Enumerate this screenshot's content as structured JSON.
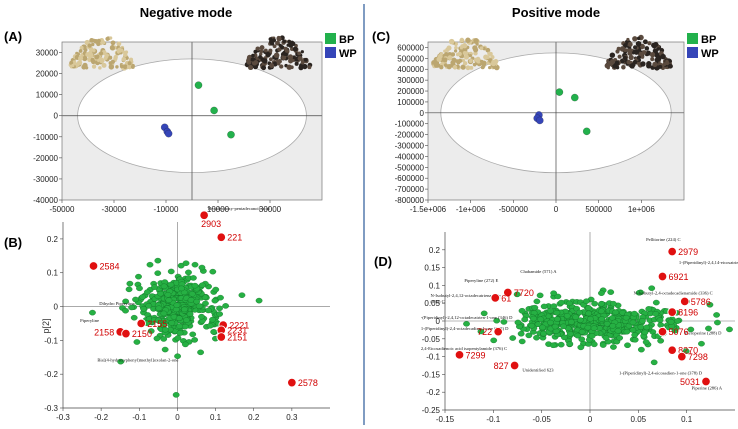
{
  "headers": {
    "negative": "Negative mode",
    "positive": "Positive mode"
  },
  "colors": {
    "bp": "#22b14c",
    "wp": "#3545b8",
    "loading_fill": "#26b043",
    "highlight": "#e01010",
    "label": "#d10000",
    "divider": "#2b5a9a"
  },
  "chart_data": [
    {
      "id": "A",
      "panel_label": "(A)",
      "type": "scatter",
      "title": "",
      "xlim": [
        -50000,
        50000
      ],
      "ylim": [
        -40000,
        35000
      ],
      "xticks": [
        -50000,
        -30000,
        -10000,
        10000,
        30000
      ],
      "yticks": [
        -40000,
        -30000,
        -20000,
        -10000,
        0,
        10000,
        20000,
        30000
      ],
      "xtick_labels": [
        "-50000",
        "-30000",
        "-10000",
        "10000",
        "30000"
      ],
      "ytick_labels": [
        "-40000",
        "-30000",
        "-20000",
        "-10000",
        "0",
        "10000",
        "20000",
        "30000"
      ],
      "ellipse": {
        "rx": 44000,
        "ry": 27000
      },
      "legend": [
        "BP",
        "WP"
      ],
      "series": [
        {
          "name": "BP",
          "points": [
            [
              2500,
              14500
            ],
            [
              8500,
              2500
            ],
            [
              15000,
              -9000
            ]
          ]
        },
        {
          "name": "WP",
          "points": [
            [
              -10500,
              -5500
            ],
            [
              -9500,
              -7500
            ],
            [
              -9000,
              -8500
            ]
          ]
        }
      ]
    },
    {
      "id": "C",
      "panel_label": "(C)",
      "type": "scatter",
      "title": "",
      "xlim": [
        -1500000,
        1500000
      ],
      "ylim": [
        -800000,
        650000
      ],
      "xticks": [
        -1500000,
        -1000000,
        -500000,
        0,
        500000,
        1000000
      ],
      "yticks": [
        -800000,
        -700000,
        -600000,
        -500000,
        -400000,
        -300000,
        -200000,
        -100000,
        0,
        100000,
        200000,
        300000,
        400000,
        500000,
        600000
      ],
      "xtick_labels": [
        "-1.5e+006",
        "-1e+006",
        "-500000",
        "0",
        "500000",
        "1e+006"
      ],
      "ytick_labels": [
        "-800000",
        "-700000",
        "-600000",
        "-500000",
        "-400000",
        "-300000",
        "-200000",
        "-100000",
        "0",
        "100000",
        "200000",
        "300000",
        "400000",
        "500000",
        "600000"
      ],
      "ellipse": {
        "rx": 1350000,
        "ry": 550000
      },
      "legend": [
        "BP",
        "WP"
      ],
      "series": [
        {
          "name": "BP",
          "points": [
            [
              40000,
              190000
            ],
            [
              220000,
              140000
            ],
            [
              360000,
              -170000
            ]
          ]
        },
        {
          "name": "WP",
          "points": [
            [
              -200000,
              -20000
            ],
            [
              -220000,
              -50000
            ],
            [
              -190000,
              -70000
            ]
          ]
        }
      ]
    },
    {
      "id": "B",
      "panel_label": "(B)",
      "type": "scatter",
      "ylabel": "p[2]",
      "xlim": [
        -0.3,
        0.4
      ],
      "ylim": [
        -0.3,
        0.25
      ],
      "xticks": [
        -0.3,
        -0.2,
        -0.1,
        0,
        0.1,
        0.2,
        0.3
      ],
      "yticks": [
        -0.3,
        -0.2,
        -0.1,
        0,
        0.1,
        0.2
      ],
      "xtick_labels": [
        "-0.3",
        "-0.2",
        "-0.1",
        "0",
        "0.1",
        "0.2",
        "0.3"
      ],
      "ytick_labels": [
        "-0.3",
        "-0.2",
        "-0.1",
        "0",
        "0.1",
        "0.2"
      ],
      "cluster": {
        "cx": 0.0,
        "cy": 0.0,
        "sx": 0.055,
        "sy": 0.038,
        "n": 420,
        "seed": 7
      },
      "highlighted": [
        {
          "id": "2584",
          "x": -0.22,
          "y": 0.12,
          "label": "2584",
          "side": "right"
        },
        {
          "id": "2903",
          "x": 0.07,
          "y": 0.27,
          "label": "2903",
          "side": "below"
        },
        {
          "id": "221",
          "x": 0.115,
          "y": 0.205,
          "label": "221",
          "side": "right"
        },
        {
          "id": "2158",
          "x": -0.15,
          "y": -0.075,
          "label": "2158",
          "side": "left"
        },
        {
          "id": "2155",
          "x": -0.095,
          "y": -0.05,
          "label": "2155",
          "side": "right"
        },
        {
          "id": "2150",
          "x": -0.135,
          "y": -0.08,
          "label": "2150",
          "side": "right"
        },
        {
          "id": "2221",
          "x": 0.12,
          "y": -0.055,
          "label": "2221",
          "side": "right"
        },
        {
          "id": "2231",
          "x": 0.115,
          "y": -0.07,
          "label": "2231",
          "side": "right"
        },
        {
          "id": "2151",
          "x": 0.115,
          "y": -0.09,
          "label": "2151",
          "side": "right"
        },
        {
          "id": "2578",
          "x": 0.3,
          "y": -0.225,
          "label": "2578",
          "side": "right"
        }
      ],
      "annotations": [
        {
          "text": "Hexahydroxy-pentadecanoic acid",
          "x": 0.08,
          "y": 0.285
        },
        {
          "text": "Dihydro Piperyline",
          "x": -0.205,
          "y": 0.005
        },
        {
          "text": "Piperyline",
          "x": -0.255,
          "y": -0.045
        },
        {
          "text": "Bis[(4-hydroxyphenyl)methyl]oxolan-2-one",
          "x": -0.21,
          "y": -0.162
        }
      ]
    },
    {
      "id": "D",
      "panel_label": "(D)",
      "type": "scatter",
      "xlim": [
        -0.15,
        0.15
      ],
      "ylim": [
        -0.25,
        0.25
      ],
      "xticks": [
        -0.15,
        -0.1,
        -0.05,
        0,
        0.05,
        0.1
      ],
      "yticks": [
        -0.25,
        -0.2,
        -0.15,
        -0.1,
        -0.05,
        0,
        0.05,
        0.1,
        0.15,
        0.2
      ],
      "xtick_labels": [
        "-0.15",
        "-0.1",
        "-0.05",
        "0",
        "0.05",
        "0.1"
      ],
      "ytick_labels": [
        "-0.25",
        "-0.2",
        "-0.15",
        "-0.1",
        "-0.05",
        "0",
        "0.05",
        "0.1",
        "0.15",
        "0.2"
      ],
      "cluster": {
        "cx": 0.005,
        "cy": -0.005,
        "sx": 0.045,
        "sy": 0.026,
        "n": 520,
        "seed": 13
      },
      "highlighted": [
        {
          "id": "2979",
          "x": 0.085,
          "y": 0.195,
          "label": "2979",
          "side": "right"
        },
        {
          "id": "6921",
          "x": 0.075,
          "y": 0.125,
          "label": "6921",
          "side": "right"
        },
        {
          "id": "7720",
          "x": -0.085,
          "y": 0.08,
          "label": "7720",
          "side": "right"
        },
        {
          "id": "6133",
          "x": -0.098,
          "y": 0.065,
          "label": "61",
          "side": "right"
        },
        {
          "id": "5786",
          "x": 0.098,
          "y": 0.055,
          "label": "5786",
          "side": "right"
        },
        {
          "id": "8196",
          "x": 0.085,
          "y": 0.025,
          "label": "8196",
          "side": "right"
        },
        {
          "id": "7224",
          "x": -0.095,
          "y": -0.03,
          "label": "722",
          "side": "left"
        },
        {
          "id": "5076",
          "x": 0.075,
          "y": -0.03,
          "label": "5076",
          "side": "right"
        },
        {
          "id": "8270",
          "x": 0.085,
          "y": -0.082,
          "label": "8270",
          "side": "right"
        },
        {
          "id": "7298",
          "x": 0.095,
          "y": -0.1,
          "label": "7298",
          "side": "right"
        },
        {
          "id": "8271",
          "x": -0.078,
          "y": -0.125,
          "label": "827",
          "side": "left"
        },
        {
          "id": "7299",
          "x": -0.135,
          "y": -0.095,
          "label": "7299",
          "side": "right"
        },
        {
          "id": "5031",
          "x": 0.12,
          "y": -0.17,
          "label": "5031",
          "side": "left"
        }
      ],
      "annotations": [
        {
          "text": "Pellitorine (224) C",
          "x": 0.058,
          "y": 0.225
        },
        {
          "text": "1-(Piperidinyl)-2,4,14-eicosatrien-1-one (374)",
          "x": 0.092,
          "y": 0.16
        },
        {
          "text": "Chabamide (571) A",
          "x": -0.072,
          "y": 0.135
        },
        {
          "text": "Piperyline (272) E",
          "x": -0.13,
          "y": 0.11
        },
        {
          "text": "N-Isobutyl-2,4,12-octadecatrienamide",
          "x": -0.165,
          "y": 0.068
        },
        {
          "text": "(334) C",
          "x": -0.165,
          "y": 0.05
        },
        {
          "text": "N-Isobutyl-2,4-octadecadienamide (336) C",
          "x": 0.045,
          "y": 0.075
        },
        {
          "text": "-(Piperidinyl)-2,4,12-octadecatrien-1-one (346) D",
          "x": -0.175,
          "y": 0.005
        },
        {
          "text": "1-(Piperidinyl)-2,4-octadecadien-1-one (348) D",
          "x": -0.175,
          "y": -0.025
        },
        {
          "text": "Pieroperine (288) D",
          "x": 0.098,
          "y": -0.038
        },
        {
          "text": "2,4-Eicosadienoic acid isopentylamide (376) C",
          "x": -0.175,
          "y": -0.082
        },
        {
          "text": "Unidentified 623",
          "x": -0.07,
          "y": -0.142
        },
        {
          "text": "1-(Piperidinyl)-2,4-eicosadien-1-one (378) D",
          "x": 0.03,
          "y": -0.15
        },
        {
          "text": "Piperine (286) A",
          "x": 0.105,
          "y": -0.192
        }
      ]
    }
  ]
}
